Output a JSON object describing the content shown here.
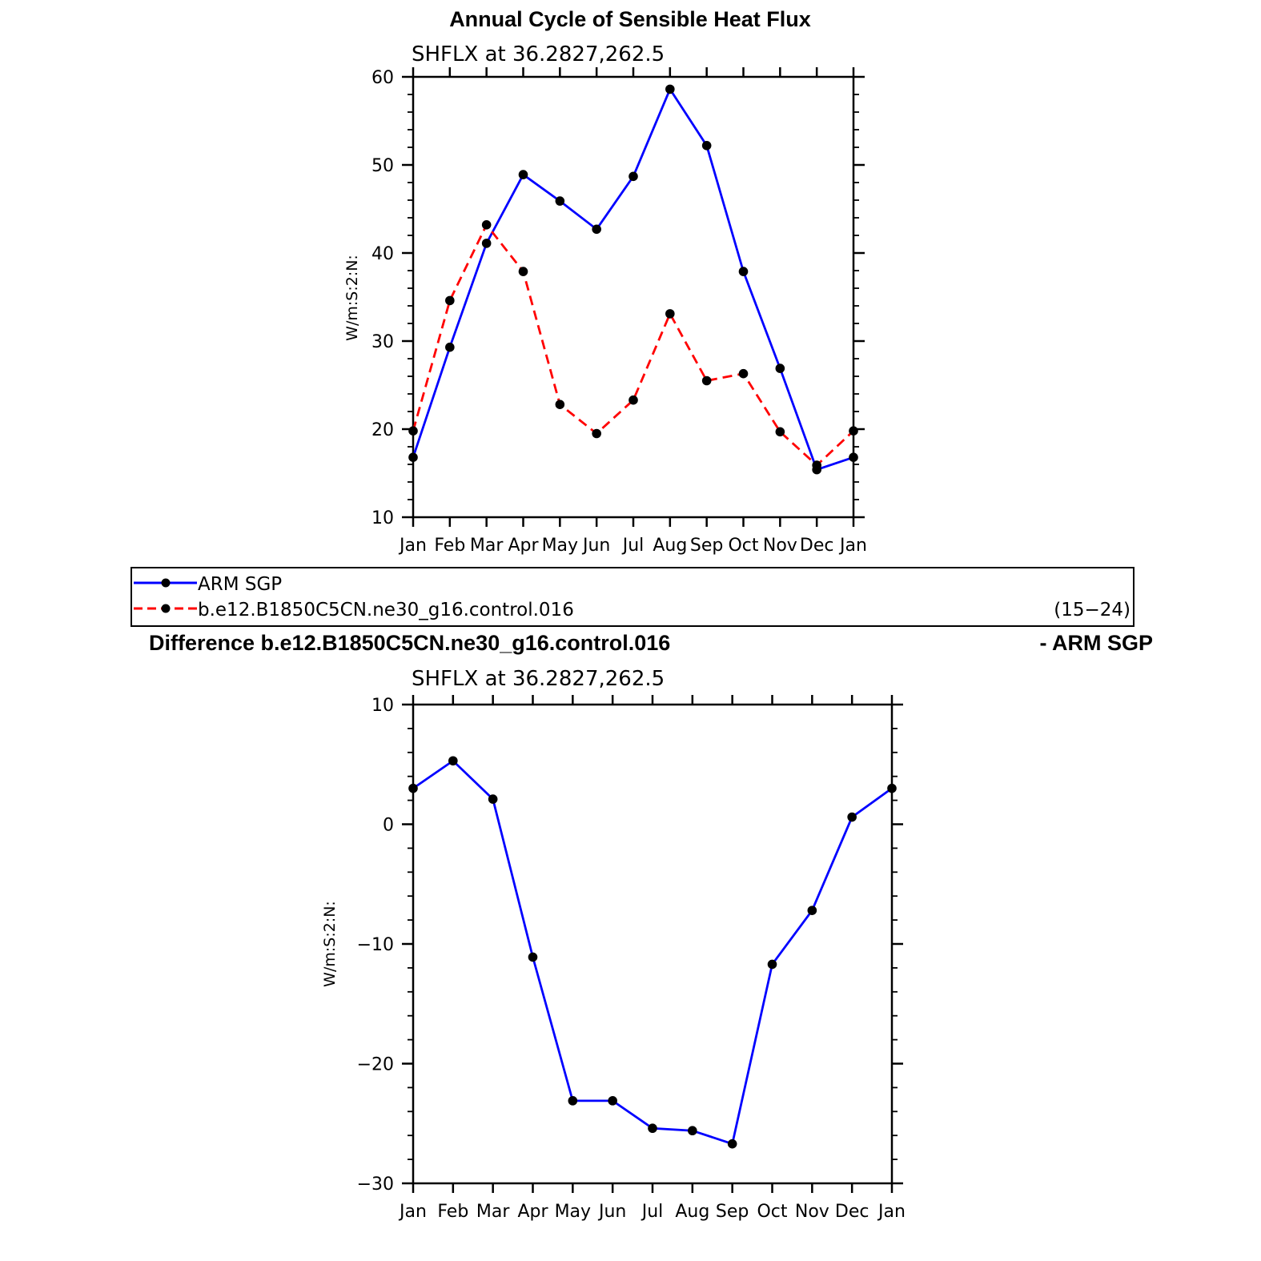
{
  "page_title": "Annual Cycle of Sensible Heat Flux",
  "difference_title": {
    "left": "Difference b.e12.B1850C5CN.ne30_g16.control.016",
    "right": "- ARM SGP"
  },
  "legend": {
    "items": [
      {
        "label": "ARM SGP",
        "color": "#0000ff",
        "dash": "solid"
      },
      {
        "label": "b.e12.B1850C5CN.ne30_g16.control.016",
        "color": "#ff0000",
        "dash": "dashed"
      }
    ],
    "note": "(15−24)"
  },
  "chart_data": [
    {
      "type": "line",
      "subtitle": "SHFLX at 36.2827,262.5",
      "ylabel": "W/m:S:2:N:",
      "categories": [
        "Jan",
        "Feb",
        "Mar",
        "Apr",
        "May",
        "Jun",
        "Jul",
        "Aug",
        "Sep",
        "Oct",
        "Nov",
        "Dec",
        "Jan"
      ],
      "ylim": [
        10,
        60
      ],
      "yticks": [
        10,
        20,
        30,
        40,
        50,
        60
      ],
      "grid": false,
      "series": [
        {
          "name": "ARM SGP",
          "color": "#0000ff",
          "dash": "solid",
          "values": [
            16.8,
            29.3,
            41.1,
            48.9,
            45.9,
            42.7,
            48.7,
            58.6,
            52.2,
            37.9,
            26.9,
            15.4,
            16.8
          ]
        },
        {
          "name": "b.e12.B1850C5CN.ne30_g16.control.016",
          "color": "#ff0000",
          "dash": "dashed",
          "values": [
            19.8,
            34.6,
            43.2,
            37.9,
            22.8,
            19.5,
            23.3,
            33.1,
            25.5,
            26.3,
            19.7,
            15.9,
            19.8
          ]
        }
      ]
    },
    {
      "type": "line",
      "subtitle": "SHFLX at 36.2827,262.5",
      "ylabel": "W/m:S:2:N:",
      "categories": [
        "Jan",
        "Feb",
        "Mar",
        "Apr",
        "May",
        "Jun",
        "Jul",
        "Aug",
        "Sep",
        "Oct",
        "Nov",
        "Dec",
        "Jan"
      ],
      "ylim": [
        -30,
        10
      ],
      "yticks": [
        -30,
        -20,
        -10,
        0,
        10
      ],
      "ytick_labels": [
        "−30",
        "−20",
        "−10",
        "0",
        "10"
      ],
      "grid": false,
      "series": [
        {
          "color": "#0000ff",
          "dash": "solid",
          "values": [
            3.0,
            5.3,
            2.1,
            -11.1,
            -23.1,
            -23.1,
            -25.4,
            -25.6,
            -26.7,
            -11.7,
            -7.2,
            0.6,
            3.0
          ]
        }
      ]
    }
  ]
}
